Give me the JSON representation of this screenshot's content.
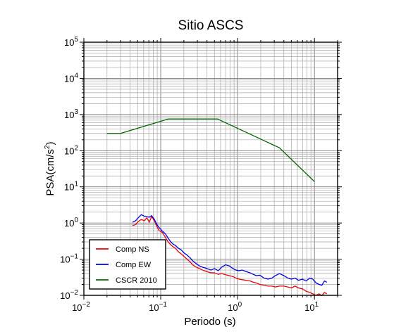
{
  "chart_data": {
    "type": "line",
    "title": "Sitio ASCS",
    "xlabel": "Periodo (s)",
    "ylabel_base": "PSA(cm/s",
    "ylabel_sup": "2",
    "ylabel_tail": ")",
    "xscale": "log",
    "yscale": "log",
    "xlim": [
      0.01,
      20
    ],
    "ylim": [
      0.01,
      100000
    ],
    "grid": true,
    "legend_placement": "bottom-left",
    "x_ticks": [
      {
        "value": 0.01,
        "base": "10",
        "exp": "−2"
      },
      {
        "value": 0.1,
        "base": "10",
        "exp": "−1"
      },
      {
        "value": 1,
        "base": "10",
        "exp": "0"
      },
      {
        "value": 10,
        "base": "10",
        "exp": "1"
      }
    ],
    "y_ticks": [
      {
        "value": 0.01,
        "base": "10",
        "exp": "−2"
      },
      {
        "value": 0.1,
        "base": "10",
        "exp": "−1"
      },
      {
        "value": 1,
        "base": "10",
        "exp": "0"
      },
      {
        "value": 10,
        "base": "10",
        "exp": "1"
      },
      {
        "value": 100,
        "base": "10",
        "exp": "2"
      },
      {
        "value": 1000,
        "base": "10",
        "exp": "3"
      },
      {
        "value": 10000,
        "base": "10",
        "exp": "4"
      },
      {
        "value": 100000,
        "base": "10",
        "exp": "5"
      }
    ],
    "series": [
      {
        "name": "Comp NS",
        "color": "#e8000b",
        "points": [
          [
            0.043,
            0.85
          ],
          [
            0.047,
            0.9
          ],
          [
            0.051,
            1.1
          ],
          [
            0.056,
            1.25
          ],
          [
            0.061,
            1.15
          ],
          [
            0.066,
            1.4
          ],
          [
            0.071,
            1.05
          ],
          [
            0.076,
            1.5
          ],
          [
            0.082,
            1.2
          ],
          [
            0.088,
            0.85
          ],
          [
            0.095,
            0.62
          ],
          [
            0.105,
            0.55
          ],
          [
            0.115,
            0.4
          ],
          [
            0.125,
            0.3
          ],
          [
            0.135,
            0.25
          ],
          [
            0.145,
            0.22
          ],
          [
            0.155,
            0.2
          ],
          [
            0.17,
            0.16
          ],
          [
            0.185,
            0.14
          ],
          [
            0.2,
            0.12
          ],
          [
            0.22,
            0.1
          ],
          [
            0.24,
            0.085
          ],
          [
            0.26,
            0.07
          ],
          [
            0.29,
            0.06
          ],
          [
            0.32,
            0.055
          ],
          [
            0.35,
            0.05
          ],
          [
            0.4,
            0.045
          ],
          [
            0.45,
            0.042
          ],
          [
            0.5,
            0.042
          ],
          [
            0.56,
            0.038
          ],
          [
            0.62,
            0.04
          ],
          [
            0.7,
            0.037
          ],
          [
            0.78,
            0.035
          ],
          [
            0.87,
            0.033
          ],
          [
            0.95,
            0.03
          ],
          [
            1.05,
            0.028
          ],
          [
            1.15,
            0.027
          ],
          [
            1.3,
            0.026
          ],
          [
            1.45,
            0.025
          ],
          [
            1.6,
            0.023
          ],
          [
            1.75,
            0.022
          ],
          [
            1.95,
            0.02
          ],
          [
            2.2,
            0.019
          ],
          [
            2.5,
            0.018
          ],
          [
            2.8,
            0.018
          ],
          [
            3.1,
            0.017
          ],
          [
            3.5,
            0.018
          ],
          [
            4.0,
            0.018
          ],
          [
            4.5,
            0.017
          ],
          [
            5.0,
            0.016
          ],
          [
            5.6,
            0.018
          ],
          [
            6.2,
            0.016
          ],
          [
            7.0,
            0.015
          ],
          [
            7.8,
            0.013
          ],
          [
            8.7,
            0.012
          ],
          [
            9.5,
            0.011
          ],
          [
            10.5,
            0.01
          ],
          [
            11.5,
            0.011
          ],
          [
            12.5,
            0.0098
          ],
          [
            13.5,
            0.012
          ],
          [
            14.5,
            0.011
          ]
        ]
      },
      {
        "name": "Comp EW",
        "color": "#0000e6",
        "points": [
          [
            0.043,
            1.05
          ],
          [
            0.047,
            1.15
          ],
          [
            0.051,
            1.4
          ],
          [
            0.056,
            1.7
          ],
          [
            0.061,
            1.55
          ],
          [
            0.066,
            1.5
          ],
          [
            0.071,
            1.45
          ],
          [
            0.076,
            1.6
          ],
          [
            0.082,
            1.3
          ],
          [
            0.088,
            0.95
          ],
          [
            0.095,
            0.75
          ],
          [
            0.105,
            0.6
          ],
          [
            0.115,
            0.5
          ],
          [
            0.125,
            0.38
          ],
          [
            0.135,
            0.3
          ],
          [
            0.145,
            0.26
          ],
          [
            0.155,
            0.24
          ],
          [
            0.17,
            0.2
          ],
          [
            0.185,
            0.18
          ],
          [
            0.2,
            0.15
          ],
          [
            0.22,
            0.13
          ],
          [
            0.24,
            0.11
          ],
          [
            0.26,
            0.09
          ],
          [
            0.29,
            0.075
          ],
          [
            0.32,
            0.065
          ],
          [
            0.35,
            0.06
          ],
          [
            0.4,
            0.055
          ],
          [
            0.45,
            0.05
          ],
          [
            0.5,
            0.055
          ],
          [
            0.56,
            0.048
          ],
          [
            0.62,
            0.06
          ],
          [
            0.7,
            0.07
          ],
          [
            0.78,
            0.065
          ],
          [
            0.87,
            0.055
          ],
          [
            0.95,
            0.05
          ],
          [
            1.05,
            0.048
          ],
          [
            1.15,
            0.05
          ],
          [
            1.3,
            0.045
          ],
          [
            1.45,
            0.042
          ],
          [
            1.6,
            0.038
          ],
          [
            1.75,
            0.035
          ],
          [
            1.95,
            0.036
          ],
          [
            2.2,
            0.03
          ],
          [
            2.5,
            0.028
          ],
          [
            2.8,
            0.03
          ],
          [
            3.1,
            0.035
          ],
          [
            3.5,
            0.04
          ],
          [
            4.0,
            0.035
          ],
          [
            4.5,
            0.03
          ],
          [
            5.0,
            0.028
          ],
          [
            5.6,
            0.03
          ],
          [
            6.2,
            0.026
          ],
          [
            7.0,
            0.028
          ],
          [
            7.8,
            0.025
          ],
          [
            8.7,
            0.03
          ],
          [
            9.5,
            0.028
          ],
          [
            10.5,
            0.022
          ],
          [
            11.5,
            0.02
          ],
          [
            12.5,
            0.019
          ],
          [
            13.5,
            0.025
          ],
          [
            14.5,
            0.023
          ]
        ]
      },
      {
        "name": "CSCR 2010",
        "color": "#006400",
        "points": [
          [
            0.02,
            300
          ],
          [
            0.03,
            300
          ],
          [
            0.125,
            750
          ],
          [
            0.55,
            750
          ],
          [
            3.5,
            120
          ],
          [
            10,
            14
          ]
        ]
      }
    ]
  }
}
